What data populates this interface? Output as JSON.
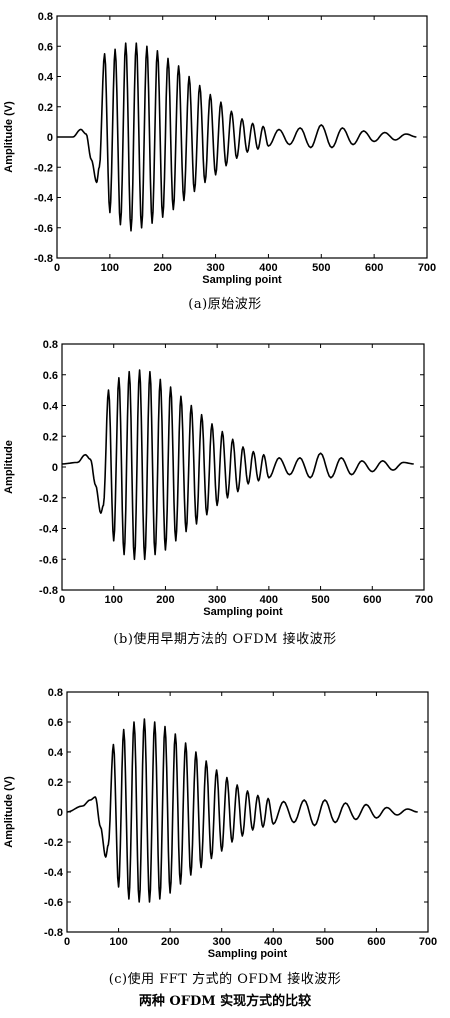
{
  "figure_caption": "两种 OFDM 实现方式的比较",
  "chart_data": [
    {
      "type": "line",
      "caption": "(a)原始波形",
      "xlabel": "Sampling point",
      "ylabel": "Amplitude (V)",
      "xlim": [
        0,
        700
      ],
      "ylim": [
        -0.8,
        0.8
      ],
      "xticks": [
        0,
        100,
        200,
        300,
        400,
        500,
        600,
        700
      ],
      "yticks": [
        -0.8,
        -0.6,
        -0.4,
        -0.2,
        0,
        0.2,
        0.4,
        0.6,
        0.8
      ],
      "ytick_labels": [
        "-0.8",
        "-0.6",
        "-0.4",
        "-0.2",
        "0",
        "0.2",
        "0.4",
        "0.6",
        "0.8"
      ],
      "xtick_labels": [
        "0",
        "100",
        "200",
        "300",
        "400",
        "500",
        "600",
        "700"
      ],
      "grid": false,
      "series": [
        {
          "x": [
            0,
            30,
            45,
            55,
            65,
            75,
            80,
            90,
            100,
            110,
            120,
            130,
            140,
            150,
            160,
            170,
            180,
            190,
            200,
            210,
            220,
            230,
            240,
            250,
            260,
            270,
            280,
            290,
            300,
            310,
            320,
            330,
            340,
            350,
            360,
            370,
            380,
            390,
            400,
            420,
            440,
            460,
            480,
            500,
            520,
            540,
            560,
            580,
            600,
            620,
            640,
            660,
            680
          ],
          "y": [
            0,
            0.0,
            0.05,
            0.02,
            -0.15,
            -0.3,
            -0.2,
            0.55,
            -0.5,
            0.58,
            -0.58,
            0.62,
            -0.62,
            0.62,
            -0.6,
            0.6,
            -0.57,
            0.57,
            -0.53,
            0.52,
            -0.48,
            0.47,
            -0.42,
            0.4,
            -0.36,
            0.34,
            -0.3,
            0.28,
            -0.25,
            0.23,
            -0.19,
            0.17,
            -0.14,
            0.12,
            -0.1,
            0.09,
            -0.08,
            0.07,
            -0.06,
            0.05,
            -0.05,
            0.06,
            -0.07,
            0.08,
            -0.07,
            0.06,
            -0.05,
            0.04,
            -0.03,
            0.03,
            -0.02,
            0.02,
            0.0
          ]
        }
      ]
    },
    {
      "type": "line",
      "caption": "(b)使用早期方法的 OFDM 接收波形",
      "xlabel": "Sampling point",
      "ylabel": "Amplitude",
      "xlim": [
        0,
        700
      ],
      "ylim": [
        -0.8,
        0.8
      ],
      "xticks": [
        0,
        100,
        200,
        300,
        400,
        500,
        600,
        700
      ],
      "yticks": [
        -0.8,
        -0.6,
        -0.4,
        -0.2,
        0,
        0.2,
        0.4,
        0.6,
        0.8
      ],
      "ytick_labels": [
        "-0.8",
        "-0.6",
        "-0.4",
        "-0.2",
        "0",
        "0.2",
        "0.4",
        "0.6",
        "0.8"
      ],
      "xtick_labels": [
        "0",
        "100",
        "200",
        "300",
        "400",
        "500",
        "600",
        "700"
      ],
      "grid": false,
      "series": [
        {
          "x": [
            0,
            30,
            45,
            55,
            65,
            75,
            80,
            90,
            100,
            110,
            120,
            130,
            140,
            150,
            160,
            170,
            180,
            190,
            200,
            210,
            220,
            230,
            240,
            250,
            260,
            270,
            280,
            290,
            300,
            310,
            320,
            330,
            340,
            350,
            360,
            370,
            380,
            390,
            400,
            420,
            440,
            460,
            480,
            500,
            520,
            540,
            560,
            580,
            600,
            620,
            640,
            660,
            680
          ],
          "y": [
            0.02,
            0.03,
            0.08,
            0.05,
            -0.12,
            -0.3,
            -0.25,
            0.5,
            -0.48,
            0.58,
            -0.57,
            0.62,
            -0.6,
            0.63,
            -0.6,
            0.62,
            -0.57,
            0.57,
            -0.54,
            0.52,
            -0.48,
            0.46,
            -0.42,
            0.4,
            -0.37,
            0.34,
            -0.31,
            0.28,
            -0.25,
            0.23,
            -0.2,
            0.18,
            -0.16,
            0.13,
            -0.11,
            0.1,
            -0.09,
            0.08,
            -0.07,
            0.06,
            -0.05,
            0.06,
            -0.07,
            0.09,
            -0.07,
            0.06,
            -0.05,
            0.04,
            -0.03,
            0.04,
            -0.02,
            0.03,
            0.02
          ]
        }
      ]
    },
    {
      "type": "line",
      "caption": "(c)使用 FFT 方式的 OFDM 接收波形",
      "xlabel": "Sampling point",
      "ylabel": "Amplitude (V)",
      "xlim": [
        0,
        700
      ],
      "ylim": [
        -0.8,
        0.8
      ],
      "xticks": [
        0,
        100,
        200,
        300,
        400,
        500,
        600,
        700
      ],
      "yticks": [
        -0.8,
        -0.6,
        -0.4,
        -0.2,
        0,
        0.2,
        0.4,
        0.6,
        0.8
      ],
      "ytick_labels": [
        "-0.8",
        "-0.6",
        "-0.4",
        "-0.2",
        "0",
        "0.2",
        "0.4",
        "0.6",
        "0.8"
      ],
      "xtick_labels": [
        "0",
        "100",
        "200",
        "300",
        "400",
        "500",
        "600",
        "700"
      ],
      "grid": false,
      "series": [
        {
          "x": [
            0,
            30,
            45,
            55,
            65,
            75,
            80,
            90,
            100,
            110,
            120,
            130,
            140,
            150,
            160,
            170,
            180,
            190,
            200,
            210,
            220,
            230,
            240,
            250,
            260,
            270,
            280,
            290,
            300,
            310,
            320,
            330,
            340,
            350,
            360,
            370,
            380,
            390,
            400,
            420,
            440,
            460,
            480,
            500,
            520,
            540,
            560,
            580,
            600,
            620,
            640,
            660,
            680
          ],
          "y": [
            0.0,
            0.04,
            0.08,
            0.1,
            -0.1,
            -0.3,
            -0.22,
            0.45,
            -0.5,
            0.55,
            -0.58,
            0.6,
            -0.6,
            0.62,
            -0.6,
            0.6,
            -0.58,
            0.57,
            -0.54,
            0.52,
            -0.48,
            0.46,
            -0.42,
            0.4,
            -0.37,
            0.34,
            -0.31,
            0.28,
            -0.26,
            0.23,
            -0.2,
            0.18,
            -0.16,
            0.14,
            -0.12,
            0.11,
            -0.1,
            0.09,
            -0.08,
            0.07,
            -0.07,
            0.08,
            -0.09,
            0.08,
            -0.07,
            0.06,
            -0.05,
            0.05,
            -0.04,
            0.03,
            -0.02,
            0.02,
            0.0
          ]
        }
      ]
    }
  ]
}
